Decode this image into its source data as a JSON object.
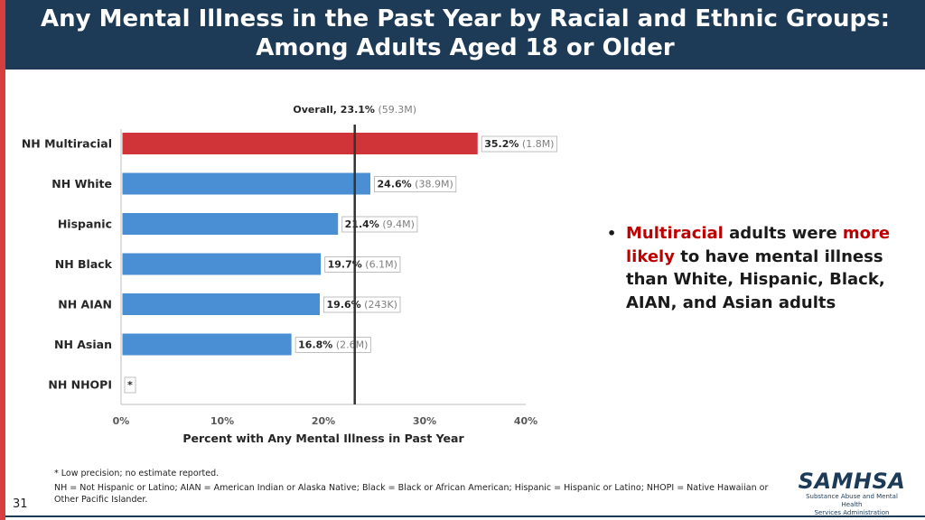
{
  "header": {
    "title_line1": "Any Mental Illness in the Past Year by Racial and Ethnic Groups:",
    "title_line2": "Among Adults Aged 18 or Older"
  },
  "chart_data": {
    "type": "bar",
    "orientation": "horizontal",
    "categories": [
      "NH Multiracial",
      "NH White",
      "Hispanic",
      "NH Black",
      "NH AIAN",
      "NH Asian",
      "NH NHOPI"
    ],
    "values": [
      35.2,
      24.6,
      21.4,
      19.7,
      19.6,
      16.8,
      null
    ],
    "counts": [
      "(1.8M)",
      "(38.9M)",
      "(9.4M)",
      "(6.1M)",
      "(243K)",
      "(2.6M)",
      ""
    ],
    "value_labels": [
      "35.2%",
      "24.6%",
      "21.4%",
      "19.7%",
      "19.6%",
      "16.8%",
      "*"
    ],
    "bar_colors": [
      "#d13438",
      "#4a8fd4",
      "#4a8fd4",
      "#4a8fd4",
      "#4a8fd4",
      "#4a8fd4",
      "#4a8fd4"
    ],
    "reference_line": {
      "value": 23.1,
      "label": "Overall, 23.1%",
      "count": "(59.3M)"
    },
    "xlim": [
      0,
      40
    ],
    "xticks": [
      0,
      10,
      20,
      30,
      40
    ],
    "xtick_labels": [
      "0%",
      "10%",
      "20%",
      "30%",
      "40%"
    ],
    "xlabel": "Percent with Any Mental Illness in Past Year"
  },
  "bullet": {
    "part1": "Multiracial",
    "part2": " adults were ",
    "part3": "more likely",
    "part4": " to have mental illness than White, Hispanic, Black, AIAN, and Asian adults"
  },
  "footnotes": {
    "line1": "* Low precision; no estimate reported.",
    "line2": "NH = Not Hispanic or Latino; AIAN = American Indian or Alaska Native; Black = Black or African American; Hispanic = Hispanic or Latino; NHOPI = Native Hawaiian or Other Pacific Islander."
  },
  "page_number": "31",
  "logo": {
    "name": "SAMHSA",
    "sub1": "Substance Abuse and Mental Health",
    "sub2": "Services Administration"
  },
  "colors": {
    "header_bg": "#1d3a57",
    "accent_red": "#c00000",
    "bar_blue": "#4a8fd4",
    "bar_red": "#d13438"
  }
}
